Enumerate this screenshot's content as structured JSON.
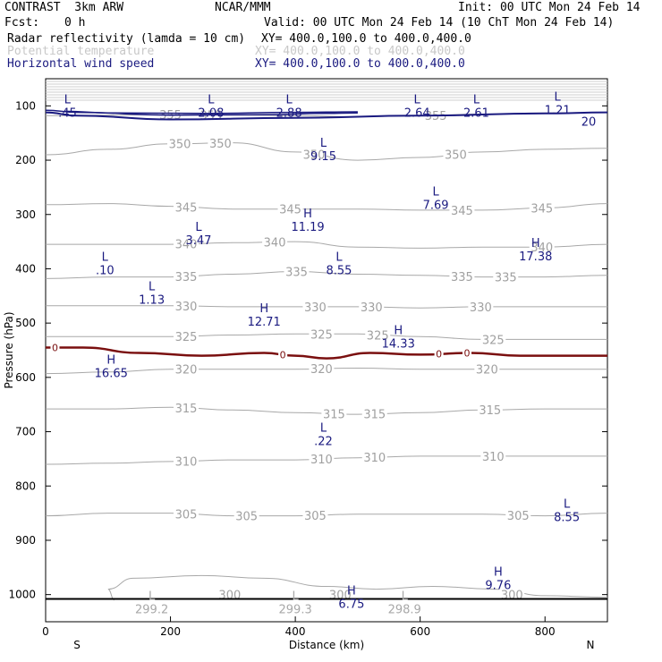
{
  "header": {
    "model": "CONTRAST  3km ARW",
    "center": "NCAR/MMM",
    "init": "Init: 00 UTC Mon 24 Feb 14",
    "fcst_label": "Fcst:",
    "fcst_value": "0 h",
    "valid": "Valid: 00 UTC Mon 24 Feb 14 (10 ChT Mon 24 Feb 14)"
  },
  "fields": [
    {
      "name": "Radar reflectivity (lamda = 10 cm)",
      "xy": "XY= 400.0,100.0 to 400.0,400.0",
      "color": "#000000"
    },
    {
      "name": "Potential temperature",
      "xy": "XY= 400.0,100.0 to 400.0,400.0",
      "color": "#c8c8c8"
    },
    {
      "name": "Horizontal wind speed",
      "xy": "XY= 400.0,100.0 to 400.0,400.0",
      "color": "#1a1a80"
    }
  ],
  "colors": {
    "theta": "#a8a8a8",
    "wind": "#1a1a80",
    "zero_line": "#7a0f0f",
    "ground": "#000000"
  },
  "chart_data": {
    "type": "cross-section",
    "xlabel": "Distance (km)",
    "ylabel": "Pressure (hPa)",
    "xlim": [
      0,
      900
    ],
    "ylim": [
      1050,
      50
    ],
    "xticks": [
      0,
      200,
      400,
      600,
      800
    ],
    "yticks": [
      100,
      200,
      300,
      400,
      500,
      600,
      700,
      800,
      900,
      1000
    ],
    "x_endpoints": {
      "left": "S",
      "right": "N"
    },
    "theta_isotherms_K": [
      {
        "value": 355,
        "p": [
          118,
          117,
          116,
          117,
          118,
          120,
          118,
          115,
          113,
          112
        ],
        "labels": [
          {
            "x": 200,
            "text": "355"
          },
          {
            "x": 265,
            "text": "355"
          },
          {
            "x": 625,
            "text": "355"
          }
        ]
      },
      {
        "value": 350,
        "p": [
          190,
          180,
          170,
          168,
          185,
          200,
          195,
          185,
          180,
          178
        ],
        "labels": [
          {
            "x": 215,
            "text": "350"
          },
          {
            "x": 280,
            "text": "350"
          },
          {
            "x": 430,
            "text": "350"
          },
          {
            "x": 657,
            "text": "350"
          }
        ]
      },
      {
        "value": 345,
        "p": [
          282,
          280,
          285,
          290,
          290,
          290,
          292,
          292,
          288,
          280
        ],
        "labels": [
          {
            "x": 225,
            "text": "345"
          },
          {
            "x": 392,
            "text": "345"
          },
          {
            "x": 667,
            "text": "345"
          },
          {
            "x": 795,
            "text": "345"
          }
        ]
      },
      {
        "value": 340,
        "p": [
          355,
          355,
          355,
          352,
          350,
          360,
          362,
          360,
          360,
          355
        ],
        "labels": [
          {
            "x": 225,
            "text": "340"
          },
          {
            "x": 367,
            "text": "340"
          },
          {
            "x": 795,
            "text": "340"
          }
        ]
      },
      {
        "value": 335,
        "p": [
          418,
          415,
          415,
          410,
          405,
          410,
          412,
          415,
          415,
          412
        ],
        "labels": [
          {
            "x": 225,
            "text": "335"
          },
          {
            "x": 402,
            "text": "335"
          },
          {
            "x": 667,
            "text": "335"
          },
          {
            "x": 737,
            "text": "335"
          }
        ]
      },
      {
        "value": 330,
        "p": [
          468,
          468,
          468,
          470,
          470,
          470,
          472,
          470,
          470,
          470
        ],
        "labels": [
          {
            "x": 225,
            "text": "330"
          },
          {
            "x": 432,
            "text": "330"
          },
          {
            "x": 522,
            "text": "330"
          },
          {
            "x": 697,
            "text": "330"
          }
        ]
      },
      {
        "value": 325,
        "p": [
          525,
          525,
          525,
          522,
          520,
          520,
          525,
          530,
          530,
          530
        ],
        "labels": [
          {
            "x": 225,
            "text": "325"
          },
          {
            "x": 442,
            "text": "325"
          },
          {
            "x": 532,
            "text": "325"
          },
          {
            "x": 717,
            "text": "325"
          }
        ]
      },
      {
        "value": 320,
        "p": [
          593,
          590,
          585,
          585,
          585,
          583,
          585,
          585,
          585,
          585
        ],
        "labels": [
          {
            "x": 225,
            "text": "320"
          },
          {
            "x": 442,
            "text": "320"
          },
          {
            "x": 707,
            "text": "320"
          }
        ]
      },
      {
        "value": 315,
        "p": [
          658,
          658,
          655,
          660,
          665,
          668,
          665,
          660,
          658,
          658
        ],
        "labels": [
          {
            "x": 225,
            "text": "315"
          },
          {
            "x": 462,
            "text": "315"
          },
          {
            "x": 527,
            "text": "315"
          },
          {
            "x": 712,
            "text": "315"
          }
        ]
      },
      {
        "value": 310,
        "p": [
          760,
          758,
          755,
          752,
          752,
          748,
          745,
          745,
          745,
          745
        ],
        "labels": [
          {
            "x": 225,
            "text": "310"
          },
          {
            "x": 442,
            "text": "310"
          },
          {
            "x": 527,
            "text": "310"
          },
          {
            "x": 717,
            "text": "310"
          }
        ]
      },
      {
        "value": 305,
        "p": [
          855,
          850,
          850,
          855,
          855,
          852,
          852,
          852,
          855,
          850
        ],
        "labels": [
          {
            "x": 225,
            "text": "305"
          },
          {
            "x": 322,
            "text": "305"
          },
          {
            "x": 432,
            "text": "305"
          },
          {
            "x": 757,
            "text": "305"
          }
        ]
      },
      {
        "value": 300,
        "p": [
          1000,
          990,
          970,
          965,
          970,
          985,
          990,
          985,
          990,
          1005
        ],
        "labels": [
          {
            "x": 295,
            "text": "300"
          },
          {
            "x": 472,
            "text": "300"
          },
          {
            "x": 747,
            "text": "300"
          }
        ]
      }
    ],
    "extrema": [
      {
        "x": 35,
        "p": 95,
        "kind": "L",
        "value": ".45",
        "color": "#1a1a80"
      },
      {
        "x": 265,
        "p": 95,
        "kind": "L",
        "value": "2.08",
        "color": "#1a1a80"
      },
      {
        "x": 390,
        "p": 95,
        "kind": "L",
        "value": "2.88",
        "color": "#1a1a80"
      },
      {
        "x": 595,
        "p": 95,
        "kind": "L",
        "value": "2.64",
        "color": "#1a1a80"
      },
      {
        "x": 690,
        "p": 95,
        "kind": "L",
        "value": "2.61",
        "color": "#1a1a80"
      },
      {
        "x": 820,
        "p": 90,
        "kind": "L",
        "value": "1.21",
        "color": "#1a1a80"
      },
      {
        "x": 445,
        "p": 175,
        "kind": "L",
        "value": "9.15",
        "color": "#1a1a80"
      },
      {
        "x": 625,
        "p": 265,
        "kind": "L",
        "value": "7.69",
        "color": "#1a1a80"
      },
      {
        "x": 420,
        "p": 305,
        "kind": "H",
        "value": "11.19",
        "color": "#1a1a80"
      },
      {
        "x": 245,
        "p": 330,
        "kind": "L",
        "value": "3.47",
        "color": "#1a1a80"
      },
      {
        "x": 785,
        "p": 360,
        "kind": "H",
        "value": "17.38",
        "color": "#1a1a80"
      },
      {
        "x": 95,
        "p": 385,
        "kind": "L",
        "value": ".10",
        "color": "#1a1a80"
      },
      {
        "x": 470,
        "p": 385,
        "kind": "L",
        "value": "8.55",
        "color": "#1a1a80"
      },
      {
        "x": 170,
        "p": 440,
        "kind": "L",
        "value": "1.13",
        "color": "#1a1a80"
      },
      {
        "x": 350,
        "p": 480,
        "kind": "H",
        "value": "12.71",
        "color": "#1a1a80"
      },
      {
        "x": 565,
        "p": 520,
        "kind": "H",
        "value": "14.33",
        "color": "#1a1a80"
      },
      {
        "x": 105,
        "p": 575,
        "kind": "H",
        "value": "16.65",
        "color": "#1a1a80"
      },
      {
        "x": 445,
        "p": 700,
        "kind": "L",
        "value": ".22",
        "color": "#1a1a80"
      },
      {
        "x": 835,
        "p": 840,
        "kind": "L",
        "value": "8.55",
        "color": "#1a1a80"
      },
      {
        "x": 725,
        "p": 965,
        "kind": "H",
        "value": "9.76",
        "color": "#1a1a80"
      },
      {
        "x": 170,
        "p": 1010,
        "kind": "L",
        "value": "299.2",
        "color": "#a8a8a8"
      },
      {
        "x": 400,
        "p": 1010,
        "kind": "L",
        "value": "299.3",
        "color": "#a8a8a8"
      },
      {
        "x": 490,
        "p": 1000,
        "kind": "H",
        "value": "6.75",
        "color": "#1a1a80"
      },
      {
        "x": 575,
        "p": 1010,
        "kind": "L",
        "value": "298.9",
        "color": "#a8a8a8"
      }
    ],
    "zero_line": {
      "x": [
        0,
        60,
        150,
        250,
        350,
        400,
        450,
        520,
        600,
        680,
        760,
        900
      ],
      "p": [
        545,
        545,
        555,
        560,
        555,
        560,
        565,
        555,
        558,
        555,
        560,
        560
      ],
      "labels": [
        {
          "x": 15,
          "text": "0"
        },
        {
          "x": 380,
          "text": "0"
        },
        {
          "x": 630,
          "text": "0"
        },
        {
          "x": 675,
          "text": "0"
        }
      ]
    },
    "wind_contour_labels": [
      {
        "x": 870,
        "p": 128,
        "text": "20"
      }
    ],
    "ground_pressure": 1008
  }
}
